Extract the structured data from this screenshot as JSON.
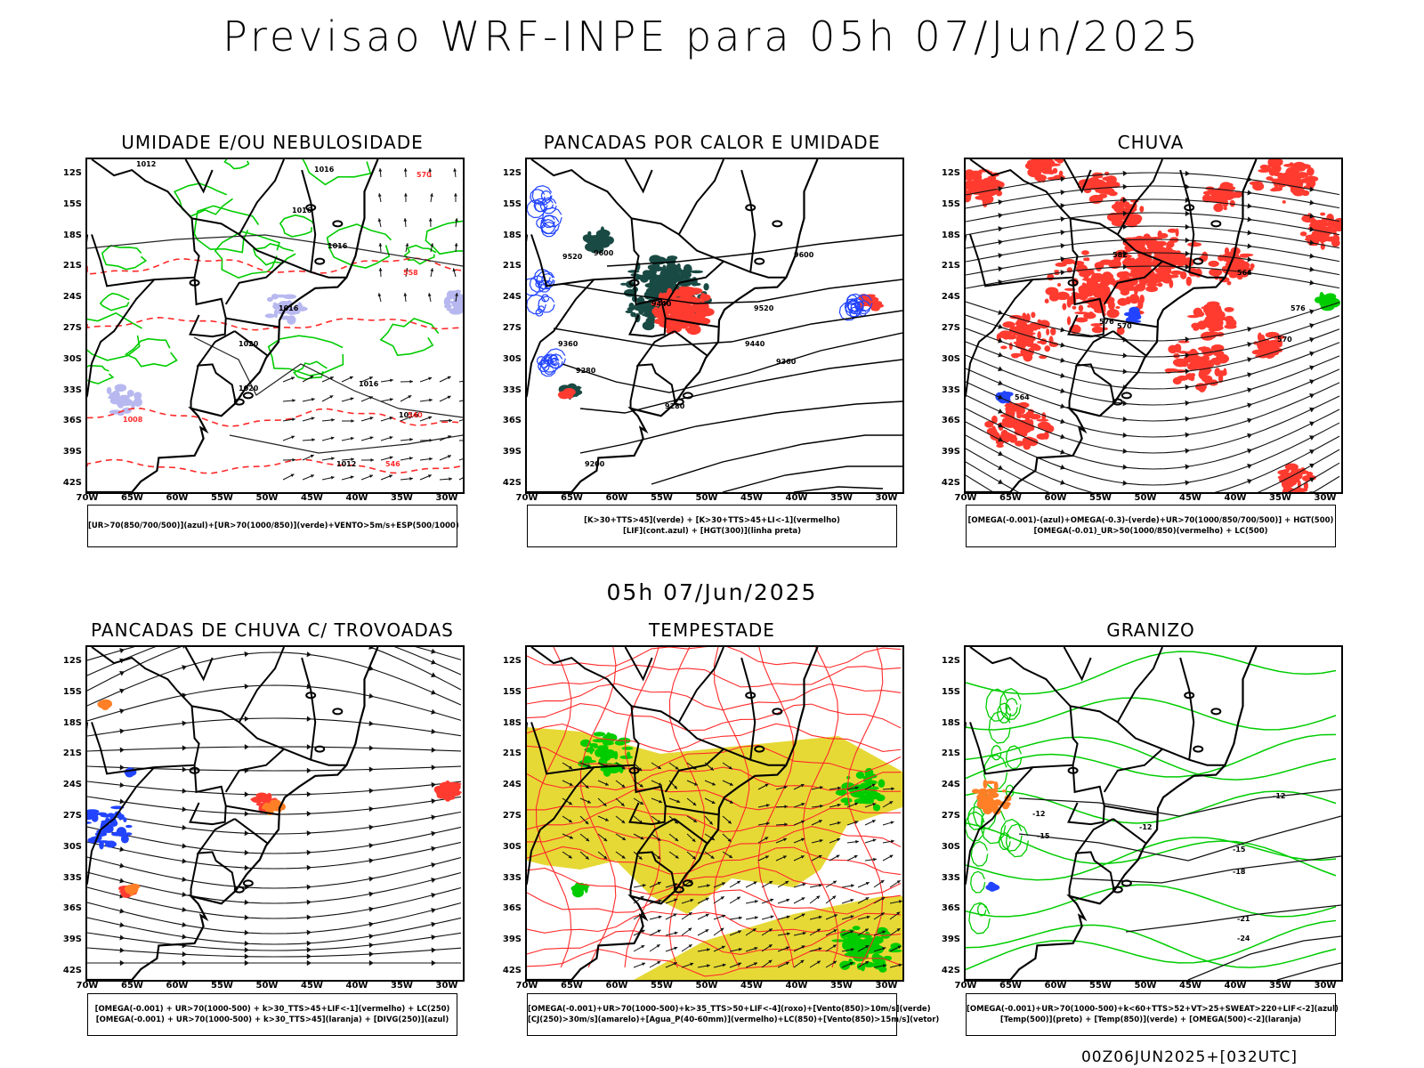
{
  "title": "Previsao WRF-INPE  para 05h 07/Jun/2025",
  "mid_title": "05h 07/Jun/2025",
  "footer": "00Z06JUN2025+[032UTC]",
  "lat_labels": [
    "12S",
    "15S",
    "18S",
    "21S",
    "24S",
    "27S",
    "30S",
    "33S",
    "36S",
    "39S",
    "42S"
  ],
  "lon_labels": [
    "70W",
    "65W",
    "60W",
    "55W",
    "50W",
    "45W",
    "40W",
    "35W",
    "30W"
  ],
  "panels": [
    {
      "title": "UMIDADE E/OU NEBULOSIDADE",
      "legend": [
        "[UR>70(850/700/500)](azul)+[UR>70(1000/850)](verde)+VENTO>5m/s+ESP(500/1000)"
      ],
      "labels": [
        "1012",
        "1016",
        "1016",
        "1016",
        "1016",
        "1020",
        "1020",
        "1016",
        "1016",
        "1012",
        "1008",
        "570",
        "558",
        "546",
        "540"
      ]
    },
    {
      "title": "PANCADAS POR CALOR E UMIDADE",
      "legend": [
        "[K>30+TTS>45](verde) + [K>30+TTS>45+LI<-1](vermelho)",
        "[LIF](cont.azul) + [HGT(300)](linha preta)"
      ],
      "labels": [
        "9600",
        "9520",
        "9440",
        "9360",
        "9280",
        "9200",
        "9600",
        "9520",
        "9440",
        "9360",
        "9280"
      ]
    },
    {
      "title": "CHUVA",
      "legend": [
        "[OMEGA(-0.001)-(azul)+OMEGA(-0.3)-(verde)+UR>70(1000/850/700/500)] + HGT(500)",
        "[OMEGA(-0.01)_UR>50(1000/850)(vermelho) + LC(500)"
      ],
      "labels": [
        "582",
        "576",
        "570",
        "564",
        "576",
        "570",
        "564"
      ]
    },
    {
      "title": "PANCADAS DE CHUVA C/ TROVOADAS",
      "legend": [
        "[OMEGA(-0.001) + UR>70(1000-500) + k>30_TTS>45+LIF<-1](vermelho) + LC(250)",
        "[OMEGA(-0.001) + UR>70(1000-500) + k>30_TTS>45](laranja) + [DIVG(250)](azul)"
      ],
      "labels": []
    },
    {
      "title": "TEMPESTADE",
      "legend": [
        "[OMEGA(-0.001)+UR>70(1000-500)+k>35_TTS>50+LIF<-4](roxo)+[Vento(850)>10m/s](verde)",
        "[CJ(250)>30m/s](amarelo)+[Agua_P(40-60mm)](vermelho)+LC(850)+[Vento(850)>15m/s](vetor)"
      ],
      "labels": []
    },
    {
      "title": "GRANIZO",
      "legend": [
        "[OMEGA(-0.001)+UR>70(1000-500)+k<60+TTS>52+VT>25+SWEAT>220+LIF<-2](azul)",
        "[Temp(500)](preto) + [Temp(850)](verde) + [OMEGA(500)<-2](laranja)"
      ],
      "labels": [
        "-12",
        "-15",
        "-12",
        "-12",
        "-15",
        "-18",
        "-21",
        "-24"
      ]
    }
  ],
  "colors": {
    "coast": "#000000",
    "green": "#00cc00",
    "red": "#ff3b30",
    "red_line": "#ff2a2a",
    "blue": "#2244ff",
    "dark_teal": "#1a4a44",
    "yellow": "#e6d936",
    "lavender": "#b8b8f0",
    "orange": "#ff7f27"
  }
}
